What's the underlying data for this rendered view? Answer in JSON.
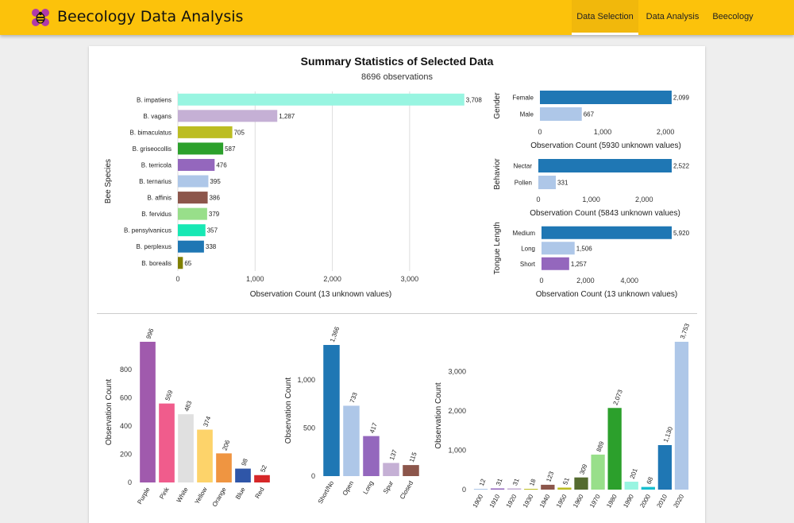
{
  "app": {
    "title": "Beecology Data Analysis",
    "icon": "bee-icon",
    "tabs": [
      {
        "label": "Data Selection",
        "active": true
      },
      {
        "label": "Data Analysis",
        "active": false
      },
      {
        "label": "Beecology",
        "active": false
      }
    ],
    "colors": {
      "topbar": "#fcc20b",
      "tab_active": "#f1b80c"
    }
  },
  "summary": {
    "title": "Summary Statistics of Selected Data",
    "subtitle": "8696 observations"
  },
  "chart_data": [
    {
      "id": "species",
      "type": "bar",
      "orientation": "horizontal",
      "ylabel": "Bee Species",
      "xlabel": "Observation Count (13 unknown values)",
      "xticks": [
        "0",
        "1,000",
        "2,000",
        "3,000"
      ],
      "xlim": [
        0,
        3700
      ],
      "categories": [
        "B. impatiens",
        "B. vagans",
        "B. bimaculatus",
        "B. griseocollis",
        "B. terricola",
        "B. ternarius",
        "B. affinis",
        "B. fervidus",
        "B. pensylvanicus",
        "B. perplexus",
        "B. borealis"
      ],
      "values": [
        3708,
        1287,
        705,
        587,
        476,
        395,
        386,
        379,
        357,
        338,
        65
      ],
      "labels": [
        "3,708",
        "1,287",
        "705",
        "587",
        "476",
        "395",
        "386",
        "379",
        "357",
        "338",
        "65"
      ],
      "colors": [
        "#98f5e1",
        "#c5b0d5",
        "#bcbd22",
        "#2ca02c",
        "#9467bd",
        "#aec7e8",
        "#8c564b",
        "#98df8a",
        "#17e8b4",
        "#1f77b4",
        "#808000"
      ],
      "grid": true
    },
    {
      "id": "gender",
      "type": "bar",
      "orientation": "horizontal",
      "ylabel": "Gender",
      "xlabel": "Observation Count (5930 unknown values)",
      "xticks": [
        "0",
        "1,000",
        "2,000"
      ],
      "xlim": [
        0,
        2100
      ],
      "categories": [
        "Female",
        "Male"
      ],
      "values": [
        2099,
        667
      ],
      "labels": [
        "2,099",
        "667"
      ],
      "colors": [
        "#1f77b4",
        "#aec7e8"
      ]
    },
    {
      "id": "behavior",
      "type": "bar",
      "orientation": "horizontal",
      "ylabel": "Behavior",
      "xlabel": "Observation Count (5843 unknown values)",
      "xticks": [
        "0",
        "1,000",
        "2,000"
      ],
      "xlim": [
        0,
        2522
      ],
      "categories": [
        "Nectar",
        "Pollen"
      ],
      "values": [
        2522,
        331
      ],
      "labels": [
        "2,522",
        "331"
      ],
      "colors": [
        "#1f77b4",
        "#aec7e8"
      ]
    },
    {
      "id": "tongue",
      "type": "bar",
      "orientation": "horizontal",
      "ylabel": "Tongue Length",
      "xlabel": "Observation Count (13 unknown values)",
      "xticks": [
        "0",
        "2,000",
        "4,000"
      ],
      "xlim": [
        0,
        5920
      ],
      "categories": [
        "Medium",
        "Long",
        "Short"
      ],
      "values": [
        5920,
        1506,
        1257
      ],
      "labels": [
        "5,920",
        "1,506",
        "1,257"
      ],
      "colors": [
        "#1f77b4",
        "#aec7e8",
        "#9467bd"
      ]
    },
    {
      "id": "flower_color",
      "type": "bar",
      "orientation": "vertical",
      "ylabel": "Observation Count",
      "yticks": [
        "0",
        "200",
        "400",
        "600",
        "800"
      ],
      "ylim": [
        0,
        996
      ],
      "categories": [
        "Purple",
        "Pink",
        "White",
        "Yellow",
        "Orange",
        "Blue",
        "Red"
      ],
      "values": [
        996,
        559,
        483,
        374,
        206,
        98,
        52
      ],
      "labels": [
        "996",
        "559",
        "483",
        "374",
        "206",
        "98",
        "52"
      ],
      "colors": [
        "#a05aad",
        "#f05c8c",
        "#e0e0e0",
        "#fdd36a",
        "#ef9541",
        "#2f56a8",
        "#d62728"
      ]
    },
    {
      "id": "flower_shape",
      "type": "bar",
      "orientation": "vertical",
      "ylabel": "Observation Count",
      "yticks": [
        "0",
        "500",
        "1,000"
      ],
      "ylim": [
        0,
        1366
      ],
      "categories": [
        "Short/No",
        "Open",
        "Long",
        "Spur",
        "Closed"
      ],
      "values": [
        1366,
        733,
        417,
        137,
        115
      ],
      "labels": [
        "1,366",
        "733",
        "417",
        "137",
        "115"
      ],
      "colors": [
        "#1f77b4",
        "#aec7e8",
        "#9467bd",
        "#c5b0d5",
        "#8c564b"
      ]
    },
    {
      "id": "decade",
      "type": "bar",
      "orientation": "vertical",
      "ylabel": "Observation Count",
      "yticks": [
        "0",
        "1,000",
        "2,000",
        "3,000"
      ],
      "ylim": [
        0,
        3753
      ],
      "categories": [
        "1900",
        "1910",
        "1920",
        "1930",
        "1940",
        "1950",
        "1960",
        "1970",
        "1980",
        "1990",
        "2000",
        "2010",
        "2020"
      ],
      "values": [
        12,
        31,
        31,
        18,
        123,
        51,
        309,
        889,
        2073,
        201,
        68,
        1130,
        3753
      ],
      "labels": [
        "12",
        "31",
        "31",
        "18",
        "123",
        "51",
        "309",
        "889",
        "2,073",
        "201",
        "68",
        "1,130",
        "3,753"
      ],
      "colors": [
        "#aec7e8",
        "#9467bd",
        "#c5b0d5",
        "#bcbd22",
        "#8c564b",
        "#bcbd22",
        "#556b2f",
        "#98df8a",
        "#2ca02c",
        "#98f5e1",
        "#17becf",
        "#1f77b4",
        "#aec7e8"
      ]
    }
  ]
}
